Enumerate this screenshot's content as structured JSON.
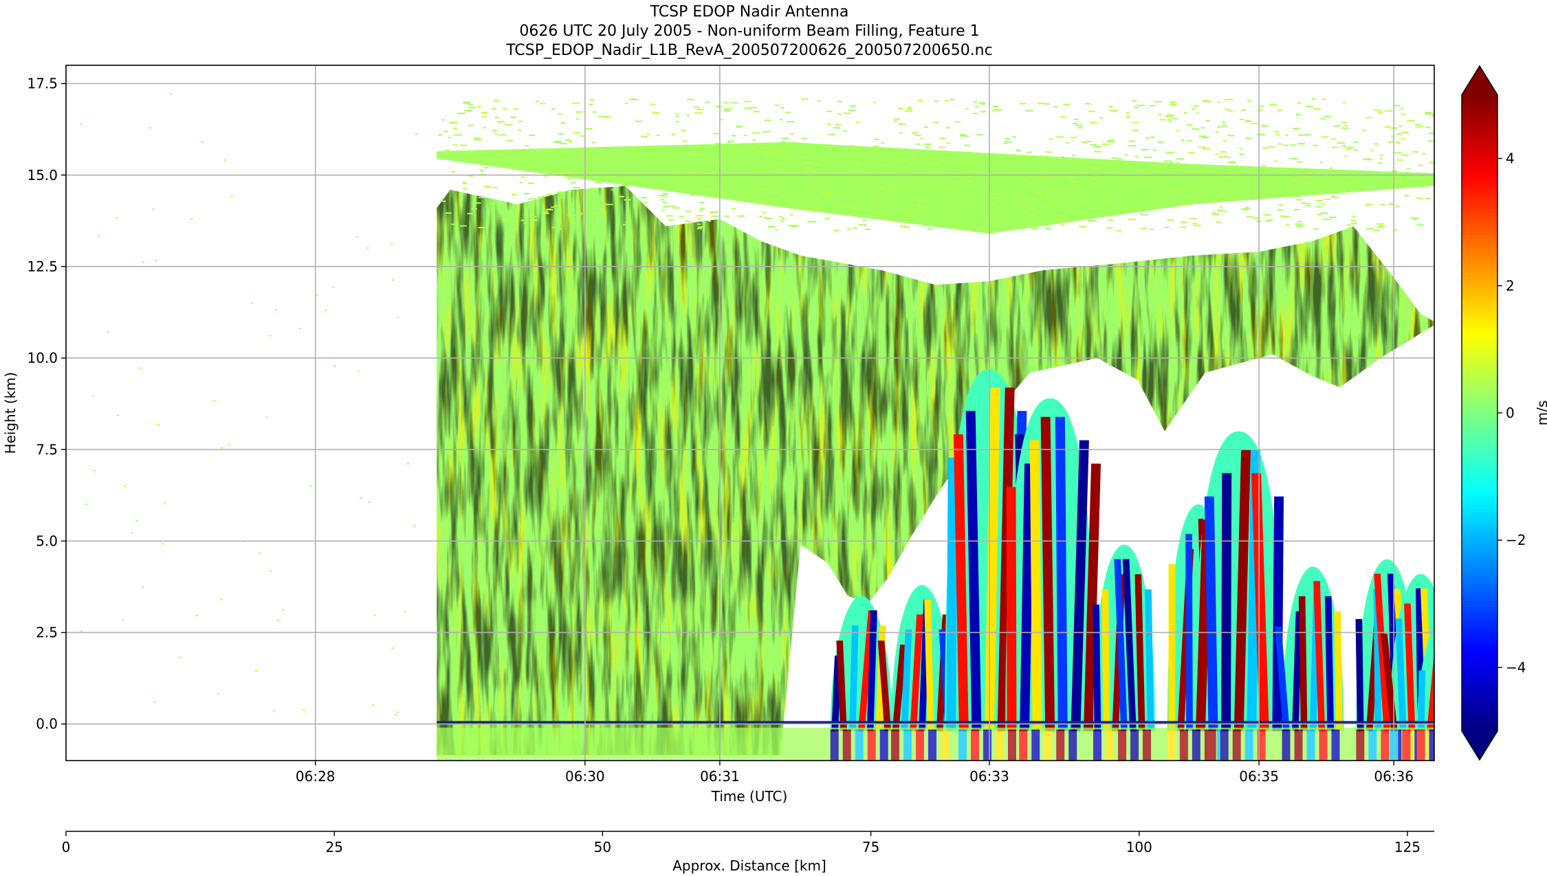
{
  "chart_data": {
    "type": "heatmap",
    "title_lines": [
      "TCSP EDOP Nadir Antenna",
      "0626 UTC 20 July 2005 - Non-uniform Beam Filling, Feature 1",
      "TCSP_EDOP_Nadir_L1B_RevA_200507200626_200507200650.nc"
    ],
    "xlabel": "Time (UTC)",
    "ylabel": "Height (km)",
    "x2label": "Approx. Distance [km]",
    "colorbar_label": "m/s",
    "colormap": "jet",
    "clim": [
      -5,
      5
    ],
    "extend": "both",
    "grid": true,
    "ylim": [
      -1.0,
      18.0
    ],
    "yticks": [
      0.0,
      2.5,
      5.0,
      7.5,
      10.0,
      12.5,
      15.0,
      17.5
    ],
    "ytick_labels": [
      "0.0",
      "2.5",
      "5.0",
      "7.5",
      "10.0",
      "12.5",
      "15.0",
      "17.5"
    ],
    "xlim_minutes": [
      26.15,
      36.3
    ],
    "xticks_minutes": [
      28,
      30,
      31,
      33,
      35,
      36
    ],
    "xtick_labels": [
      "06:28",
      "06:30",
      "06:31",
      "06:33",
      "06:35",
      "06:36"
    ],
    "distance_lim_km": [
      0,
      127.5
    ],
    "distance_ticks": [
      0,
      25,
      50,
      75,
      100,
      125
    ],
    "distance_tick_labels": [
      "0",
      "25",
      "50",
      "75",
      "100",
      "125"
    ],
    "colorbar_ticks": [
      -4,
      -2,
      0,
      2,
      4
    ],
    "colorbar_tick_labels": [
      "−4",
      "−2",
      "0",
      "2",
      "4"
    ],
    "data_start_minutes": 28.9,
    "anvil_top_km": 15.5,
    "convective_cells": [
      {
        "t_minutes": 32.05,
        "top_km": 3.5
      },
      {
        "t_minutes": 32.5,
        "top_km": 3.8
      },
      {
        "t_minutes": 33.0,
        "top_km": 9.7
      },
      {
        "t_minutes": 33.45,
        "top_km": 8.9
      },
      {
        "t_minutes": 34.0,
        "top_km": 4.9
      },
      {
        "t_minutes": 34.55,
        "top_km": 6.0
      },
      {
        "t_minutes": 34.85,
        "top_km": 8.0
      },
      {
        "t_minutes": 35.4,
        "top_km": 4.3
      },
      {
        "t_minutes": 35.95,
        "top_km": 4.5
      },
      {
        "t_minutes": 36.2,
        "top_km": 4.1
      },
      {
        "t_minutes": 36.4,
        "top_km": 3.1
      }
    ]
  }
}
